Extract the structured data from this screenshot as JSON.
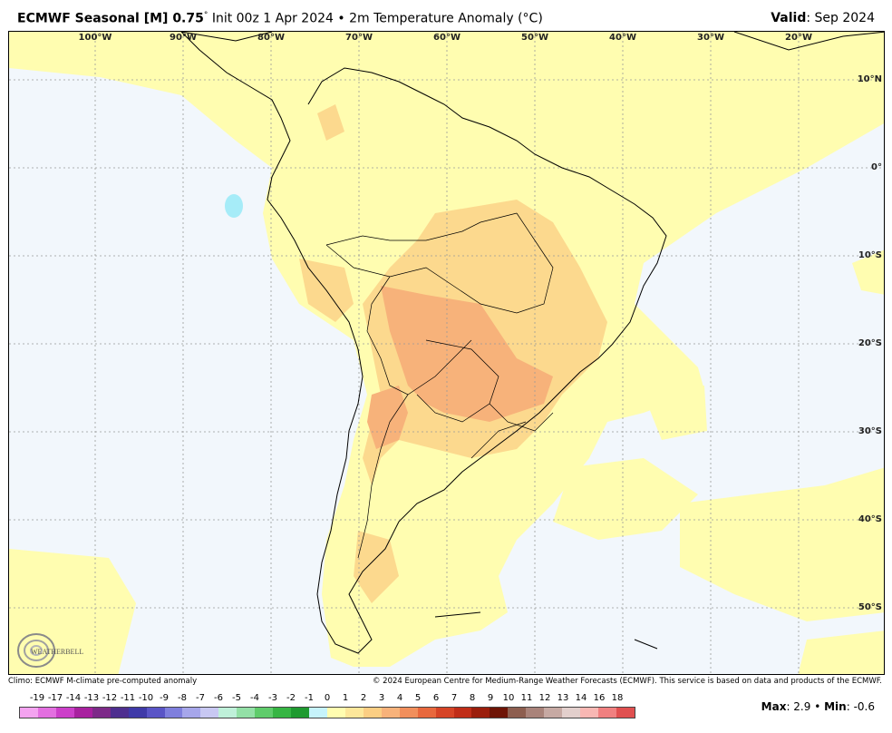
{
  "header": {
    "model": "ECMWF Seasonal [M] 0.75",
    "degree": "°",
    "init": "Init 00z 1 Apr 2024",
    "bullet": "•",
    "field": "2m Temperature Anomaly (°C)",
    "valid_label": "Valid",
    "valid_value": ": Sep 2024"
  },
  "map": {
    "lon_labels": [
      "100°W",
      "90°W",
      "80°W",
      "70°W",
      "60°W",
      "50°W",
      "40°W",
      "30°W",
      "20°W"
    ],
    "lat_labels": [
      "10°N",
      "0°",
      "10°S",
      "20°S",
      "30°S",
      "40°S",
      "50°S"
    ],
    "logo_text": "WEATHERBELL",
    "colors": {
      "ocean_base": "#f2f7fc",
      "anom_0_1": "#fffdb0",
      "anom_1_2": "#fcd98e",
      "anom_2_3": "#f7b27a",
      "lake": "#a6ecf8",
      "coast": "#000000",
      "grid": "#999999"
    }
  },
  "footer": {
    "climo": "Climo: ECMWF M-climate pre-computed anomaly",
    "copyright": "© 2024 European Centre for Medium-Range Weather Forecasts (ECMWF). This service is based on data and products of the ECMWF."
  },
  "colorbar": {
    "ticks": [
      "-19",
      "-17",
      "-14",
      "-13",
      "-12",
      "-11",
      "-10",
      "-9",
      "-8",
      "-7",
      "-6",
      "-5",
      "-4",
      "-3",
      "-2",
      "-1",
      "0",
      "1",
      "2",
      "3",
      "4",
      "5",
      "6",
      "7",
      "8",
      "9",
      "10",
      "11",
      "12",
      "13",
      "14",
      "16",
      "18"
    ],
    "colors": [
      "#f4a3f0",
      "#e36fe0",
      "#cc3fc9",
      "#a8219f",
      "#7d2a88",
      "#4e2f8f",
      "#3f3aa8",
      "#5a55c6",
      "#7f7fdd",
      "#a6a6ea",
      "#c8c8f2",
      "#bff0d9",
      "#93e0a6",
      "#5fcc6b",
      "#36b543",
      "#1f9a30",
      "#c6f3fb",
      "#fffdb0",
      "#fde79a",
      "#fbce83",
      "#f7b27a",
      "#f18f5c",
      "#e8683d",
      "#d64426",
      "#c02d18",
      "#9b1e0c",
      "#6e1406",
      "#8d5e4f",
      "#a9837a",
      "#c6a9a3",
      "#e2cfcc",
      "#f8b7b3",
      "#f08080",
      "#e05050"
    ]
  },
  "stats": {
    "max_label": "Max",
    "max_value": ": 2.9",
    "sep": " • ",
    "min_label": "Min",
    "min_value": ": -0.6"
  }
}
